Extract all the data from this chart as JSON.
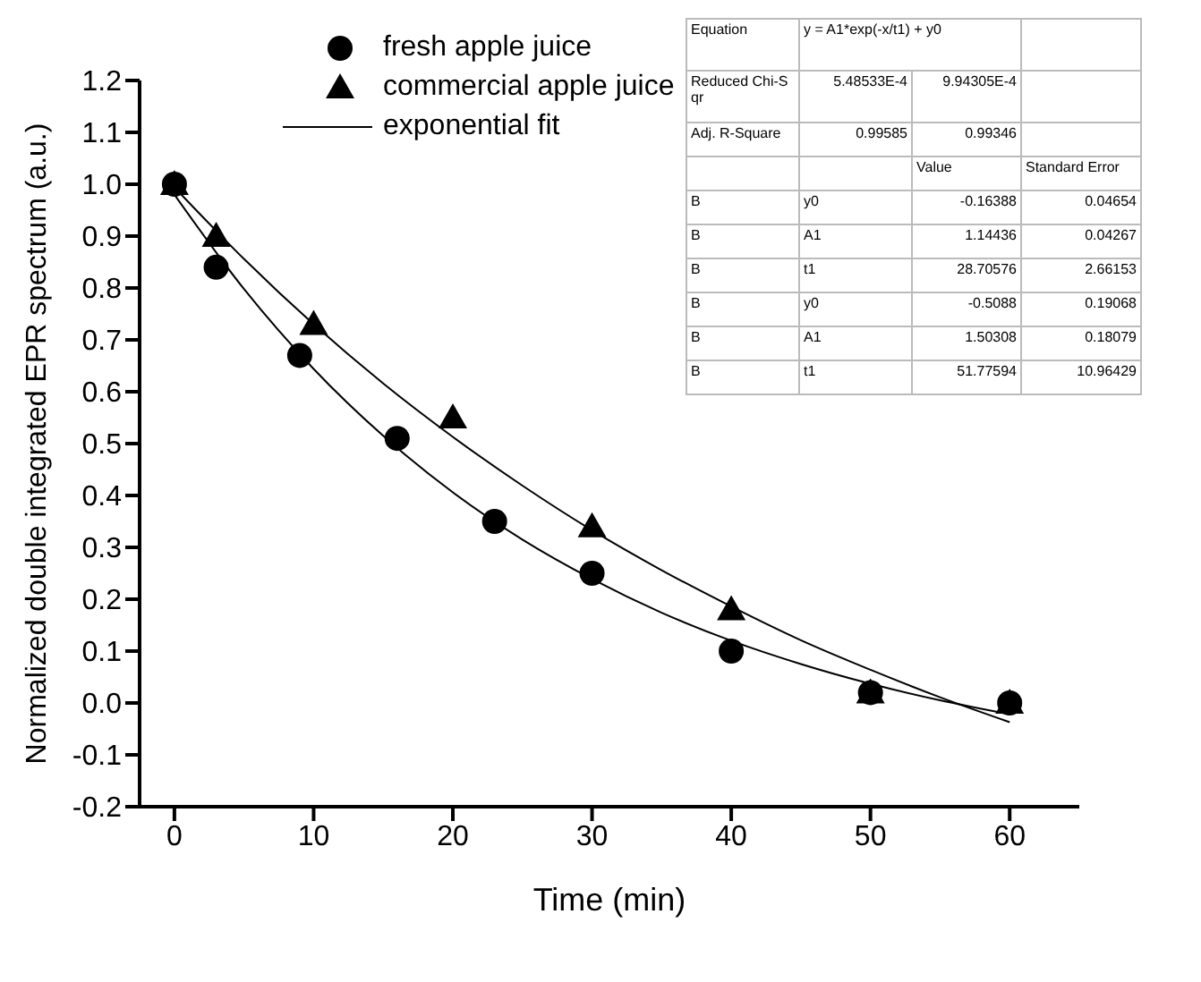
{
  "chart_data": {
    "type": "scatter",
    "xlabel": "Time (min)",
    "ylabel": "Normalized double integrated EPR spectrum (a.u.)",
    "xlim": [
      -2.5,
      65
    ],
    "xticks": [
      0,
      10,
      20,
      30,
      40,
      50,
      60
    ],
    "ylim": [
      -0.2,
      1.2
    ],
    "yticks": [
      {
        "value": -0.2,
        "label": "-0.2"
      },
      {
        "value": -0.1,
        "label": "-0.1"
      },
      {
        "value": 0,
        "label": "0.0"
      },
      {
        "value": 0.1,
        "label": "0.1"
      },
      {
        "value": 0.2,
        "label": "0.2"
      },
      {
        "value": 0.3,
        "label": "0.3"
      },
      {
        "value": 0.4,
        "label": "0.4"
      },
      {
        "value": 0.5,
        "label": "0.5"
      },
      {
        "value": 0.6,
        "label": "0.6"
      },
      {
        "value": 0.7,
        "label": "0.7"
      },
      {
        "value": 0.8,
        "label": "0.8"
      },
      {
        "value": 0.9,
        "label": "0.9"
      },
      {
        "value": 1.0,
        "label": "1.0"
      },
      {
        "value": 1.1,
        "label": "1.1"
      },
      {
        "value": 1.2,
        "label": "1.2"
      }
    ],
    "grid": false,
    "legend": "top left",
    "series": [
      {
        "name": "fresh apple juice",
        "marker": "circle",
        "color": "#000000",
        "x": [
          0,
          3,
          9,
          16,
          23,
          30,
          40,
          50,
          60
        ],
        "values": [
          1.0,
          0.84,
          0.67,
          0.51,
          0.35,
          0.25,
          0.1,
          0.02,
          0.0
        ]
      },
      {
        "name": "commercial apple juice",
        "marker": "triangle",
        "color": "#000000",
        "x": [
          0,
          3,
          10,
          20,
          30,
          40,
          50,
          60
        ],
        "values": [
          1.0,
          0.9,
          0.73,
          0.55,
          0.34,
          0.18,
          0.02,
          0.0
        ]
      },
      {
        "name": "exponential fit",
        "type": "line",
        "marker": "none",
        "color": "#000000",
        "x": [
          0,
          5,
          10,
          15,
          20,
          25,
          30,
          35,
          40,
          45,
          50,
          55,
          60
        ],
        "values": [
          0.98,
          0.798,
          0.644,
          0.515,
          0.406,
          0.315,
          0.239,
          0.174,
          0.12,
          0.075,
          0.037,
          0.005,
          -0.022
        ]
      },
      {
        "type": "line",
        "marker": "none",
        "color": "#000000",
        "x": [
          0,
          5,
          10,
          15,
          20,
          25,
          30,
          35,
          40,
          45,
          50,
          55,
          60
        ],
        "values": [
          0.994,
          0.856,
          0.73,
          0.616,
          0.513,
          0.419,
          0.333,
          0.256,
          0.186,
          0.121,
          0.064,
          0.011,
          -0.037
        ]
      }
    ],
    "annotations": [
      "Equation",
      "y = A1*exp(-x/t1) + y0",
      "Reduced Chi-Sqr",
      "5.48533E-4",
      "9.94305E-4",
      "Adj. R-Square",
      "0.99585",
      "0.99346",
      "Value",
      "Standard Error",
      "B",
      "y0",
      "-0.16388",
      "0.04654",
      "B",
      "A1",
      "1.14436",
      "0.04267",
      "B",
      "t1",
      "28.70576",
      "2.66153",
      "B",
      "y0",
      "-0.5088",
      "0.19068",
      "B",
      "A1",
      "1.50308",
      "0.18079",
      "B",
      "t1",
      "51.77594",
      "10.96429"
    ]
  }
}
